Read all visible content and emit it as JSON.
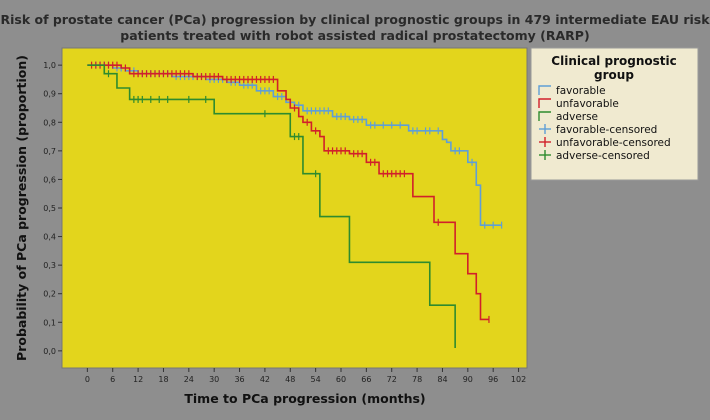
{
  "chart_data": {
    "type": "line",
    "title": [
      "Risk of prostate cancer (PCa) progression by clinical prognostic groups in 479 intermediate EAU risk",
      "patients treated with robot assisted radical prostatectomy (RARP)"
    ],
    "xlabel": "Time to PCa progression (months)",
    "ylabel": "Probability of PCa progression (proportion)",
    "xlim": [
      -6,
      104
    ],
    "ylim": [
      -0.06,
      1.06
    ],
    "xticks": [
      "0",
      "6",
      "12",
      "18",
      "24",
      "30",
      "36",
      "42",
      "48",
      "54",
      "60",
      "66",
      "72",
      "78",
      "84",
      "90",
      "96",
      "102"
    ],
    "yticks": [
      "0,0",
      "0,1",
      "0,2",
      "0,3",
      "0,4",
      "0,5",
      "0,6",
      "0,7",
      "0,8",
      "0,9",
      "1,0"
    ],
    "legend_title": [
      "Clinical prognostic",
      "group"
    ],
    "colors": {
      "favorable": "#5f9fd6",
      "unfavorable": "#d1202a",
      "adverse": "#2e8b2e",
      "plot_bg": "#e3d51c",
      "legend_bg": "#f0ead0"
    },
    "series": [
      {
        "name": "favorable",
        "color_key": "favorable",
        "steps": [
          [
            0,
            1.0
          ],
          [
            6,
            0.99
          ],
          [
            9,
            0.98
          ],
          [
            12,
            0.97
          ],
          [
            20,
            0.96
          ],
          [
            28,
            0.95
          ],
          [
            33,
            0.94
          ],
          [
            36,
            0.93
          ],
          [
            40,
            0.91
          ],
          [
            44,
            0.89
          ],
          [
            47,
            0.87
          ],
          [
            49,
            0.86
          ],
          [
            51,
            0.84
          ],
          [
            58,
            0.82
          ],
          [
            62,
            0.81
          ],
          [
            66,
            0.79
          ],
          [
            76,
            0.77
          ],
          [
            84,
            0.74
          ],
          [
            85,
            0.73
          ],
          [
            86,
            0.7
          ],
          [
            90,
            0.66
          ],
          [
            92,
            0.58
          ],
          [
            93,
            0.44
          ],
          [
            98,
            0.44
          ]
        ],
        "censored": [
          [
            2,
            1.0
          ],
          [
            3,
            1.0
          ],
          [
            4,
            1.0
          ],
          [
            5,
            1.0
          ],
          [
            7,
            0.99
          ],
          [
            8,
            0.99
          ],
          [
            10,
            0.98
          ],
          [
            11,
            0.98
          ],
          [
            13,
            0.97
          ],
          [
            14,
            0.97
          ],
          [
            15,
            0.97
          ],
          [
            16,
            0.97
          ],
          [
            17,
            0.97
          ],
          [
            18,
            0.97
          ],
          [
            19,
            0.97
          ],
          [
            21,
            0.96
          ],
          [
            22,
            0.96
          ],
          [
            23,
            0.96
          ],
          [
            24,
            0.96
          ],
          [
            25,
            0.96
          ],
          [
            26,
            0.96
          ],
          [
            27,
            0.96
          ],
          [
            29,
            0.95
          ],
          [
            30,
            0.95
          ],
          [
            31,
            0.95
          ],
          [
            32,
            0.95
          ],
          [
            34,
            0.94
          ],
          [
            35,
            0.94
          ],
          [
            37,
            0.93
          ],
          [
            38,
            0.93
          ],
          [
            39,
            0.93
          ],
          [
            41,
            0.91
          ],
          [
            42,
            0.91
          ],
          [
            43,
            0.91
          ],
          [
            45,
            0.89
          ],
          [
            46,
            0.89
          ],
          [
            48,
            0.87
          ],
          [
            50,
            0.86
          ],
          [
            52,
            0.84
          ],
          [
            53,
            0.84
          ],
          [
            54,
            0.84
          ],
          [
            55,
            0.84
          ],
          [
            56,
            0.84
          ],
          [
            57,
            0.84
          ],
          [
            59,
            0.82
          ],
          [
            60,
            0.82
          ],
          [
            61,
            0.82
          ],
          [
            63,
            0.81
          ],
          [
            64,
            0.81
          ],
          [
            65,
            0.81
          ],
          [
            67,
            0.79
          ],
          [
            68,
            0.79
          ],
          [
            70,
            0.79
          ],
          [
            72,
            0.79
          ],
          [
            74,
            0.79
          ],
          [
            77,
            0.77
          ],
          [
            78,
            0.77
          ],
          [
            80,
            0.77
          ],
          [
            81,
            0.77
          ],
          [
            83,
            0.77
          ],
          [
            87,
            0.7
          ],
          [
            88,
            0.7
          ],
          [
            91,
            0.66
          ],
          [
            94,
            0.44
          ],
          [
            96,
            0.44
          ],
          [
            98,
            0.44
          ]
        ]
      },
      {
        "name": "unfavorable",
        "color_key": "unfavorable",
        "steps": [
          [
            0,
            1.0
          ],
          [
            8,
            0.99
          ],
          [
            10,
            0.97
          ],
          [
            25,
            0.96
          ],
          [
            32,
            0.95
          ],
          [
            45,
            0.91
          ],
          [
            47,
            0.88
          ],
          [
            48,
            0.85
          ],
          [
            50,
            0.82
          ],
          [
            51,
            0.8
          ],
          [
            53,
            0.77
          ],
          [
            55,
            0.75
          ],
          [
            56,
            0.7
          ],
          [
            62,
            0.69
          ],
          [
            66,
            0.66
          ],
          [
            69,
            0.62
          ],
          [
            77,
            0.54
          ],
          [
            82,
            0.45
          ],
          [
            87,
            0.34
          ],
          [
            90,
            0.27
          ],
          [
            92,
            0.2
          ],
          [
            93,
            0.11
          ],
          [
            95,
            0.11
          ]
        ],
        "censored": [
          [
            1,
            1.0
          ],
          [
            2,
            1.0
          ],
          [
            3,
            1.0
          ],
          [
            4,
            1.0
          ],
          [
            5,
            1.0
          ],
          [
            6,
            1.0
          ],
          [
            7,
            1.0
          ],
          [
            9,
            0.99
          ],
          [
            11,
            0.97
          ],
          [
            12,
            0.97
          ],
          [
            13,
            0.97
          ],
          [
            14,
            0.97
          ],
          [
            15,
            0.97
          ],
          [
            16,
            0.97
          ],
          [
            17,
            0.97
          ],
          [
            18,
            0.97
          ],
          [
            19,
            0.97
          ],
          [
            20,
            0.97
          ],
          [
            21,
            0.97
          ],
          [
            22,
            0.97
          ],
          [
            23,
            0.97
          ],
          [
            24,
            0.97
          ],
          [
            26,
            0.96
          ],
          [
            27,
            0.96
          ],
          [
            28,
            0.96
          ],
          [
            29,
            0.96
          ],
          [
            30,
            0.96
          ],
          [
            31,
            0.96
          ],
          [
            33,
            0.95
          ],
          [
            34,
            0.95
          ],
          [
            35,
            0.95
          ],
          [
            36,
            0.95
          ],
          [
            37,
            0.95
          ],
          [
            38,
            0.95
          ],
          [
            39,
            0.95
          ],
          [
            40,
            0.95
          ],
          [
            41,
            0.95
          ],
          [
            42,
            0.95
          ],
          [
            43,
            0.95
          ],
          [
            44,
            0.95
          ],
          [
            49,
            0.85
          ],
          [
            52,
            0.8
          ],
          [
            54,
            0.77
          ],
          [
            57,
            0.7
          ],
          [
            58,
            0.7
          ],
          [
            59,
            0.7
          ],
          [
            60,
            0.7
          ],
          [
            61,
            0.7
          ],
          [
            63,
            0.69
          ],
          [
            64,
            0.69
          ],
          [
            65,
            0.69
          ],
          [
            67,
            0.66
          ],
          [
            68,
            0.66
          ],
          [
            70,
            0.62
          ],
          [
            71,
            0.62
          ],
          [
            72,
            0.62
          ],
          [
            73,
            0.62
          ],
          [
            74,
            0.62
          ],
          [
            75,
            0.62
          ],
          [
            83,
            0.45
          ],
          [
            95,
            0.11
          ]
        ]
      },
      {
        "name": "adverse",
        "color_key": "adverse",
        "steps": [
          [
            0,
            1.0
          ],
          [
            4,
            0.97
          ],
          [
            7,
            0.92
          ],
          [
            10,
            0.88
          ],
          [
            30,
            0.83
          ],
          [
            48,
            0.75
          ],
          [
            51,
            0.62
          ],
          [
            55,
            0.47
          ],
          [
            62,
            0.31
          ],
          [
            81,
            0.16
          ],
          [
            87,
            0.01
          ]
        ],
        "censored": [
          [
            5,
            0.97
          ],
          [
            11,
            0.88
          ],
          [
            12,
            0.88
          ],
          [
            13,
            0.88
          ],
          [
            15,
            0.88
          ],
          [
            17,
            0.88
          ],
          [
            19,
            0.88
          ],
          [
            24,
            0.88
          ],
          [
            28,
            0.88
          ],
          [
            42,
            0.83
          ],
          [
            49,
            0.75
          ],
          [
            50,
            0.75
          ],
          [
            54,
            0.62
          ]
        ]
      }
    ],
    "legend": [
      {
        "label": "favorable",
        "color_key": "favorable",
        "marker": false
      },
      {
        "label": "unfavorable",
        "color_key": "unfavorable",
        "marker": false
      },
      {
        "label": "adverse",
        "color_key": "adverse",
        "marker": false
      },
      {
        "label": "favorable-censored",
        "color_key": "favorable",
        "marker": true
      },
      {
        "label": "unfavorable-censored",
        "color_key": "unfavorable",
        "marker": true
      },
      {
        "label": "adverse-censored",
        "color_key": "adverse",
        "marker": true
      }
    ]
  }
}
